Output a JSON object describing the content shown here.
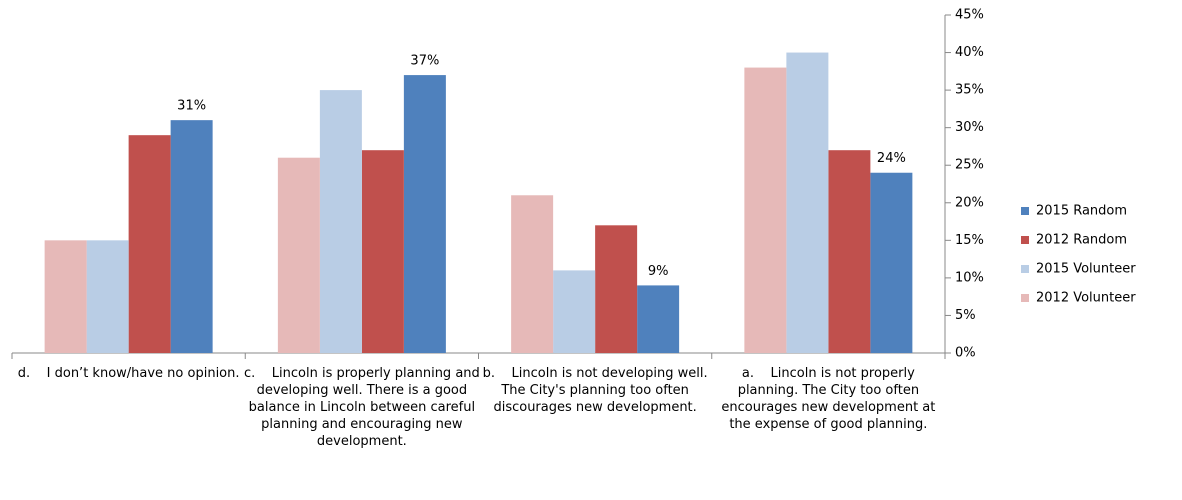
{
  "chart_data": {
    "type": "bar",
    "categories": [
      "d.    I don’t know/have no opinion.",
      "c.    Lincoln is properly planning and developing well. There is a good balance in Lincoln between careful planning and encouraging new development.",
      "b.    Lincoln is not developing well. The City's planning too often discourages new development.",
      "a.    Lincoln is not properly planning. The City too often encourages new development at the expense of good planning."
    ],
    "series": [
      {
        "name": "2015 Random",
        "color": "#4f81bd",
        "values": [
          31,
          37,
          9,
          24
        ],
        "value_labels": [
          "31%",
          "37%",
          "9%",
          "24%"
        ]
      },
      {
        "name": "2012 Random",
        "color": "#c0504d",
        "values": [
          29,
          27,
          17,
          27
        ]
      },
      {
        "name": "2015 Volunteer",
        "color": "#b9cde5",
        "values": [
          15,
          35,
          11,
          40
        ]
      },
      {
        "name": "2012 Volunteer",
        "color": "#e6b9b8",
        "values": [
          15,
          26,
          21,
          38
        ]
      }
    ],
    "ylim": [
      0,
      45
    ],
    "yticks": [
      {
        "value": 0,
        "label": "0%"
      },
      {
        "value": 5,
        "label": "5%"
      },
      {
        "value": 10,
        "label": "10%"
      },
      {
        "value": 15,
        "label": "15%"
      },
      {
        "value": 20,
        "label": "20%"
      },
      {
        "value": 25,
        "label": "25%"
      },
      {
        "value": 30,
        "label": "30%"
      },
      {
        "value": 35,
        "label": "35%"
      },
      {
        "value": 40,
        "label": "40%"
      },
      {
        "value": 45,
        "label": "45%"
      }
    ],
    "legend": "right"
  }
}
